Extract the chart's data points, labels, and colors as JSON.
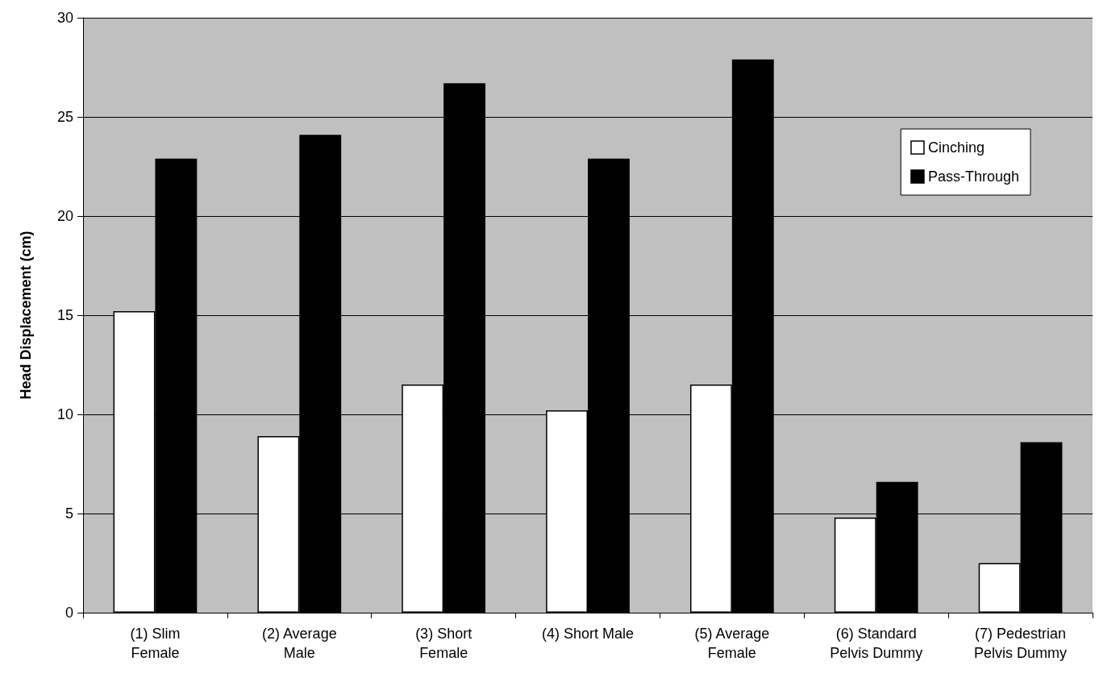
{
  "chart_data": {
    "type": "bar",
    "ylabel": "Head Displacement (cm)",
    "categories": [
      "(1) Slim\nFemale",
      "(2) Average\nMale",
      "(3) Short\nFemale",
      "(4) Short Male",
      "(5) Average\nFemale",
      "(6) Standard\nPelvis Dummy",
      "(7) Pedestrian\nPelvis Dummy"
    ],
    "series": [
      {
        "name": "Cinching",
        "color": "#ffffff",
        "values": [
          15.2,
          8.9,
          11.5,
          10.2,
          11.5,
          4.8,
          2.5
        ]
      },
      {
        "name": "Pass-Through",
        "color": "#000000",
        "values": [
          22.9,
          24.1,
          26.7,
          22.9,
          27.9,
          6.6,
          8.6
        ]
      }
    ],
    "ylim": [
      0,
      30
    ],
    "yticks": [
      0,
      5,
      10,
      15,
      20,
      25,
      30
    ],
    "grid": "y",
    "legend": "top right"
  }
}
